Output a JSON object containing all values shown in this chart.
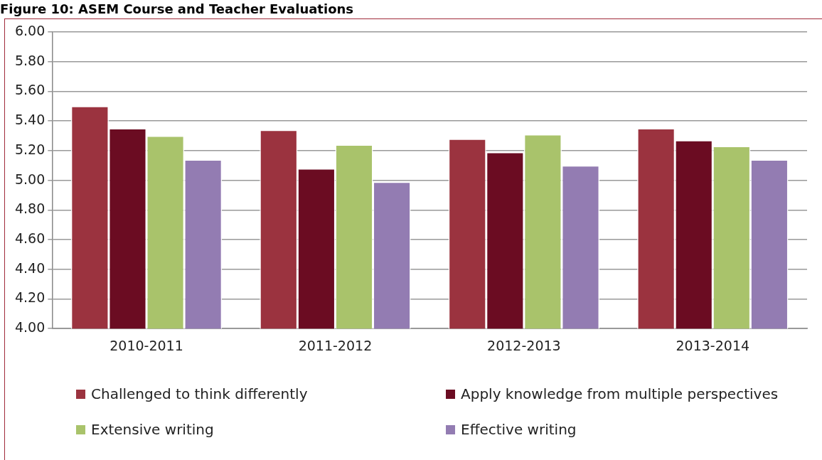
{
  "chart_data": {
    "type": "bar",
    "title": "Figure 10: ASEM Course and Teacher Evaluations",
    "categories": [
      "2010-2011",
      "2011-2012",
      "2012-2013",
      "2013-2014"
    ],
    "series": [
      {
        "name": "Challenged to think differently",
        "color": "#9b333f",
        "values": [
          5.5,
          5.34,
          5.28,
          5.35
        ]
      },
      {
        "name": "Apply knowledge from multiple perspectives",
        "color": "#6b0c22",
        "values": [
          5.35,
          5.08,
          5.19,
          5.27
        ]
      },
      {
        "name": "Extensive writing",
        "color": "#a9c36b",
        "values": [
          5.3,
          5.24,
          5.31,
          5.23
        ]
      },
      {
        "name": "Effective writing",
        "color": "#937cb2",
        "values": [
          5.14,
          4.99,
          5.1,
          5.14
        ]
      }
    ],
    "ylim": [
      4,
      6
    ],
    "yticks": [
      {
        "value": 4,
        "label": "4.00"
      },
      {
        "value": 4.2,
        "label": "4.20"
      },
      {
        "value": 4.4,
        "label": "4.40"
      },
      {
        "value": 4.6,
        "label": "4.60"
      },
      {
        "value": 4.8,
        "label": "4.80"
      },
      {
        "value": 5,
        "label": "5.00"
      },
      {
        "value": 5.2,
        "label": "5.20"
      },
      {
        "value": 5.4,
        "label": "5.40"
      },
      {
        "value": 5.6,
        "label": "5.60"
      },
      {
        "value": 5.8,
        "label": "5.80"
      },
      {
        "value": 6,
        "label": "6.00"
      }
    ],
    "grid": "y",
    "legend": "bottom"
  }
}
